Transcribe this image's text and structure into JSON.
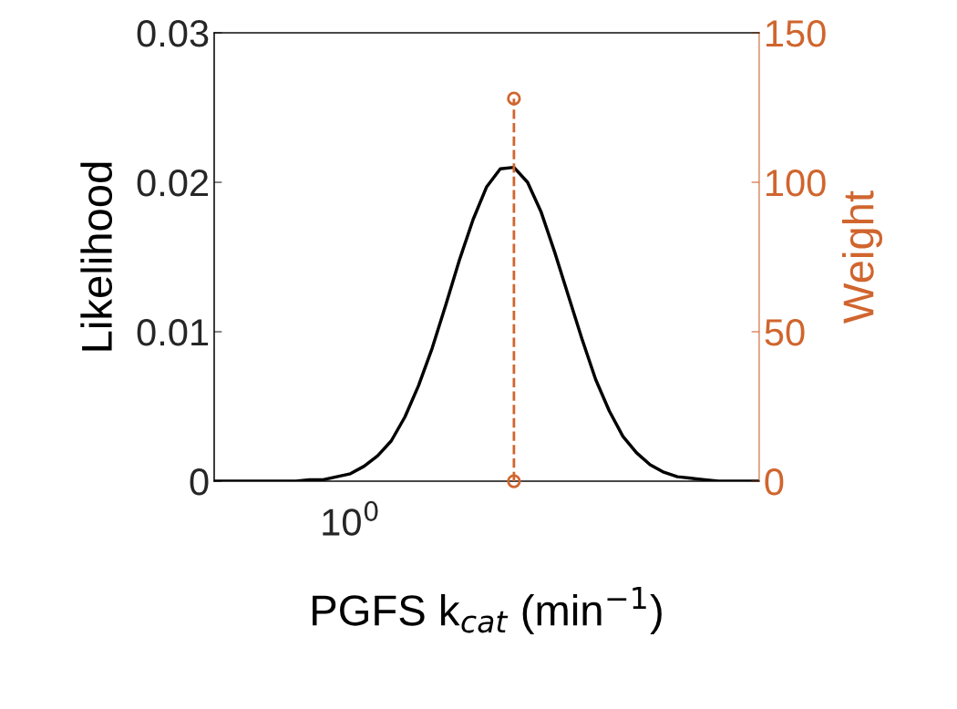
{
  "chart_data": {
    "type": "line",
    "xlabel": "PGFS k$_{cat}$ (min$^{−1}$)",
    "ylabel": "Likelihood",
    "y2label": "Weight",
    "annotations": [
      "10$^{0}$"
    ],
    "categories": [
      null,
      null,
      null,
      null,
      null,
      null,
      null,
      null,
      null,
      null,
      null,
      null,
      null,
      null,
      null,
      null,
      null,
      null,
      null,
      null,
      null,
      null,
      null,
      null,
      null,
      null,
      null,
      null,
      null,
      null,
      null,
      null,
      null,
      null,
      null,
      null,
      null,
      null,
      null,
      null,
      null
    ],
    "ylim": [
      0,
      0.03
    ],
    "yticks": [
      0,
      0.01,
      0.02,
      0.03
    ],
    "y2lim": [
      0,
      150
    ],
    "y2ticks": [
      0,
      50,
      100,
      150
    ],
    "series": [
      {
        "color": "#000000",
        "line_style": "solid",
        "values": [
          0,
          0,
          0,
          0,
          0,
          0,
          0,
          0.0001,
          0.0001,
          0.0003,
          0.0005,
          0.001,
          0.0017,
          0.0027,
          0.0043,
          0.0064,
          0.0089,
          0.0118,
          0.0148,
          0.0175,
          0.0197,
          0.0209,
          0.021,
          0.02,
          0.018,
          0.0153,
          0.0124,
          0.0095,
          0.0068,
          0.0047,
          0.003,
          0.0019,
          0.0011,
          0.0006,
          0.0003,
          0.0002,
          0.0001,
          0,
          0,
          0,
          0
        ]
      },
      {
        "type": "lollipop",
        "axis": "y2",
        "color": "#d0652e",
        "line_style": "dashed",
        "marker": "circle",
        "values": [
          null,
          null,
          null,
          null,
          null,
          null,
          null,
          null,
          null,
          null,
          null,
          null,
          null,
          null,
          null,
          null,
          null,
          null,
          null,
          null,
          null,
          null,
          128,
          null,
          null,
          null,
          null,
          null,
          null,
          null,
          null,
          null,
          null,
          null,
          null,
          null,
          null,
          null,
          null,
          null,
          null
        ]
      },
      {
        "type": "scatter",
        "axis": "y2",
        "color": "#d0652e",
        "marker": "circle",
        "values": [
          null,
          null,
          null,
          null,
          null,
          null,
          null,
          null,
          null,
          null,
          null,
          null,
          null,
          null,
          null,
          null,
          null,
          null,
          null,
          null,
          null,
          null,
          0,
          null,
          null,
          null,
          null,
          null,
          null,
          null,
          null,
          null,
          null,
          null,
          null,
          null,
          null,
          null,
          null,
          null,
          null
        ]
      }
    ]
  }
}
